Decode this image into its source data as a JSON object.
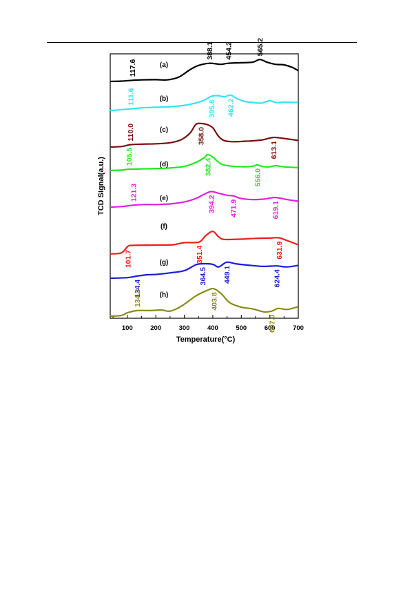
{
  "chart_data": {
    "type": "line",
    "xlabel": "Temperature(°C)",
    "ylabel": "TCD Signal(a.u.)",
    "xlim": [
      40,
      700
    ],
    "xticks": [
      100,
      200,
      300,
      400,
      500,
      600,
      700
    ],
    "yticks": [],
    "grid": false,
    "series": [
      {
        "name": "(a)",
        "color": "#000000",
        "points": [
          [
            40,
            0
          ],
          [
            80,
            0.3
          ],
          [
            117.6,
            1.1
          ],
          [
            150,
            1.5
          ],
          [
            200,
            1.7
          ],
          [
            240,
            1.5
          ],
          [
            280,
            4
          ],
          [
            320,
            11
          ],
          [
            350,
            15
          ],
          [
            388.1,
            17
          ],
          [
            410,
            16.5
          ],
          [
            430,
            16
          ],
          [
            454.2,
            17
          ],
          [
            500,
            17.5
          ],
          [
            540,
            18
          ],
          [
            565.2,
            20.5
          ],
          [
            590,
            18
          ],
          [
            620,
            16
          ],
          [
            650,
            15.5
          ],
          [
            680,
            13
          ],
          [
            700,
            10
          ]
        ],
        "peaks": [
          {
            "label": "117.6",
            "x": 117.6,
            "side": "above"
          },
          {
            "label": "388.1",
            "x": 388.1,
            "side": "above"
          },
          {
            "label": "454.2",
            "x": 454.2,
            "side": "above"
          },
          {
            "label": "565.2",
            "x": 565.2,
            "side": "above"
          }
        ]
      },
      {
        "name": "(b)",
        "color": "#33e5ef",
        "points": [
          [
            40,
            0
          ],
          [
            70,
            0.5
          ],
          [
            111.6,
            1.4
          ],
          [
            150,
            2.3
          ],
          [
            200,
            2.8
          ],
          [
            250,
            3.3
          ],
          [
            300,
            4.5
          ],
          [
            340,
            6.5
          ],
          [
            370,
            9
          ],
          [
            395.6,
            12.5
          ],
          [
            420,
            13
          ],
          [
            440,
            12
          ],
          [
            462.2,
            13.5
          ],
          [
            480,
            11
          ],
          [
            510,
            8
          ],
          [
            540,
            7
          ],
          [
            570,
            6.5
          ],
          [
            600,
            8.5
          ],
          [
            620,
            7
          ],
          [
            650,
            7.2
          ],
          [
            700,
            7
          ]
        ],
        "peaks": [
          {
            "label": "111.6",
            "x": 111.6,
            "side": "above"
          },
          {
            "label": "395.6",
            "x": 395.6,
            "side": "below"
          },
          {
            "label": "462.2",
            "x": 462.2,
            "side": "below"
          }
        ]
      },
      {
        "name": "(c)",
        "color": "#7a0e0e",
        "points": [
          [
            40,
            0
          ],
          [
            80,
            0.5
          ],
          [
            110,
            2.2
          ],
          [
            150,
            2.7
          ],
          [
            200,
            3
          ],
          [
            250,
            4
          ],
          [
            290,
            7
          ],
          [
            320,
            13
          ],
          [
            340,
            21
          ],
          [
            358,
            22
          ],
          [
            380,
            21
          ],
          [
            400,
            18
          ],
          [
            420,
            10
          ],
          [
            440,
            6
          ],
          [
            470,
            5
          ],
          [
            520,
            5.5
          ],
          [
            570,
            6.5
          ],
          [
            613.1,
            9
          ],
          [
            650,
            8
          ],
          [
            690,
            6.5
          ],
          [
            700,
            6
          ]
        ],
        "peaks": [
          {
            "label": "110.0",
            "x": 110,
            "side": "above"
          },
          {
            "label": "358.0",
            "x": 358,
            "side": "below"
          },
          {
            "label": "613.1",
            "x": 613.1,
            "side": "below"
          }
        ]
      },
      {
        "name": "(d)",
        "color": "#1ee81e",
        "points": [
          [
            40,
            0
          ],
          [
            80,
            0.4
          ],
          [
            105.5,
            1.2
          ],
          [
            150,
            1.5
          ],
          [
            200,
            1.8
          ],
          [
            250,
            2.4
          ],
          [
            300,
            3.8
          ],
          [
            340,
            7.5
          ],
          [
            370,
            12
          ],
          [
            382.4,
            15
          ],
          [
            400,
            12.5
          ],
          [
            430,
            6
          ],
          [
            470,
            4
          ],
          [
            510,
            3.5
          ],
          [
            540,
            4
          ],
          [
            556,
            5.2
          ],
          [
            575,
            3.7
          ],
          [
            600,
            3.4
          ],
          [
            620,
            4.5
          ],
          [
            650,
            3.4
          ],
          [
            700,
            2.7
          ]
        ],
        "peaks": [
          {
            "label": "105.5",
            "x": 105.5,
            "side": "above"
          },
          {
            "label": "382.4",
            "x": 382.4,
            "side": "below"
          },
          {
            "label": "556.0",
            "x": 556,
            "side": "below"
          }
        ]
      },
      {
        "name": "(e)",
        "color": "#e21ee2",
        "points": [
          [
            40,
            0
          ],
          [
            80,
            0.5
          ],
          [
            121.3,
            1.8
          ],
          [
            160,
            2.4
          ],
          [
            200,
            2.4
          ],
          [
            250,
            3
          ],
          [
            300,
            4.8
          ],
          [
            340,
            8
          ],
          [
            370,
            12
          ],
          [
            394.2,
            14.5
          ],
          [
            420,
            13
          ],
          [
            450,
            11
          ],
          [
            471.9,
            10.5
          ],
          [
            500,
            8
          ],
          [
            540,
            7
          ],
          [
            580,
            7.5
          ],
          [
            619.1,
            9
          ],
          [
            660,
            7
          ],
          [
            700,
            5.5
          ]
        ],
        "peaks": [
          {
            "label": "121.3",
            "x": 121.3,
            "side": "above"
          },
          {
            "label": "394.2",
            "x": 394.2,
            "side": "below"
          },
          {
            "label": "471.9",
            "x": 471.9,
            "side": "below"
          },
          {
            "label": "619.1",
            "x": 619.1,
            "side": "below"
          }
        ]
      },
      {
        "name": "(f)",
        "color": "#ee1c1c",
        "points": [
          [
            40,
            -5
          ],
          [
            80,
            -4
          ],
          [
            101.7,
            2
          ],
          [
            120,
            3
          ],
          [
            200,
            3.2
          ],
          [
            260,
            3.5
          ],
          [
            300,
            5.5
          ],
          [
            351.4,
            6
          ],
          [
            375,
            12
          ],
          [
            400,
            16
          ],
          [
            420,
            11
          ],
          [
            440,
            8.5
          ],
          [
            500,
            8.8
          ],
          [
            550,
            9.5
          ],
          [
            600,
            9.8
          ],
          [
            631.9,
            10
          ],
          [
            660,
            7.5
          ],
          [
            700,
            3.5
          ]
        ],
        "peaks": [
          {
            "label": "101.7",
            "x": 101.7,
            "side": "below"
          },
          {
            "label": "351.4",
            "x": 351.4,
            "side": "below"
          },
          {
            "label": "631.9",
            "x": 631.9,
            "side": "below"
          }
        ]
      },
      {
        "name": "(g)",
        "color": "#1c1cd6",
        "points": [
          [
            40,
            0
          ],
          [
            100,
            0.5
          ],
          [
            134.4,
            2
          ],
          [
            170,
            3.2
          ],
          [
            200,
            3.5
          ],
          [
            250,
            5
          ],
          [
            300,
            7
          ],
          [
            340,
            12.5
          ],
          [
            364.5,
            13.5
          ],
          [
            400,
            13
          ],
          [
            420,
            10.5
          ],
          [
            449.1,
            15
          ],
          [
            480,
            13.5
          ],
          [
            530,
            12
          ],
          [
            580,
            11
          ],
          [
            624.4,
            11.5
          ],
          [
            660,
            10.5
          ],
          [
            700,
            12
          ]
        ],
        "peaks": [
          {
            "label": "134.4",
            "x": 134.4,
            "side": "below"
          },
          {
            "label": "364.5",
            "x": 364.5,
            "side": "below"
          },
          {
            "label": "449.1",
            "x": 449.1,
            "side": "below"
          },
          {
            "label": "624.4",
            "x": 624.4,
            "side": "below"
          }
        ]
      },
      {
        "name": "(h)",
        "color": "#8a8a1a",
        "points": [
          [
            40,
            0
          ],
          [
            80,
            0.7
          ],
          [
            100,
            3
          ],
          [
            134.3,
            5
          ],
          [
            180,
            5
          ],
          [
            220,
            5.5
          ],
          [
            250,
            4.5
          ],
          [
            290,
            9
          ],
          [
            340,
            18
          ],
          [
            380,
            23
          ],
          [
            403.8,
            24.5
          ],
          [
            430,
            20
          ],
          [
            460,
            12
          ],
          [
            500,
            8
          ],
          [
            540,
            6.5
          ],
          [
            580,
            3.8
          ],
          [
            607,
            4.5
          ],
          [
            630,
            7
          ],
          [
            660,
            6
          ],
          [
            700,
            8.5
          ]
        ],
        "peaks": [
          {
            "label": "134.3",
            "x": 134.3,
            "side": "above"
          },
          {
            "label": "403.8",
            "x": 403.8,
            "side": "below"
          },
          {
            "label": "607.0",
            "x": 607,
            "side": "below"
          }
        ]
      }
    ]
  }
}
